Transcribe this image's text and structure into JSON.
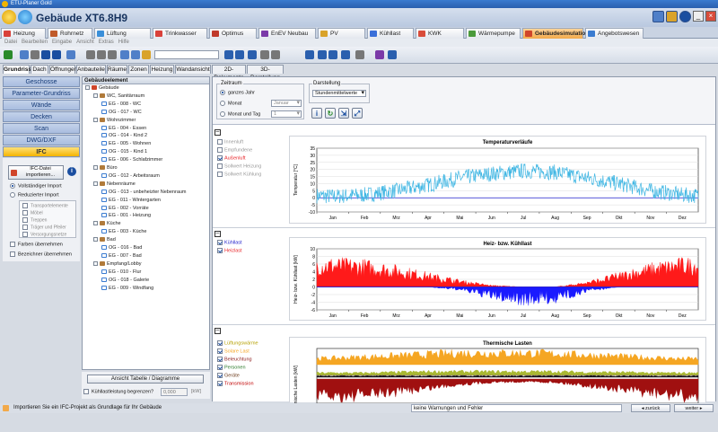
{
  "window": {
    "title": "ETU-Planer Gold"
  },
  "header": {
    "title": "Gebäude XT6.8H9"
  },
  "module_tabs": [
    {
      "label": "Heizung",
      "color": "#d9413a"
    },
    {
      "label": "Rohrnetz",
      "color": "#c05a2a"
    },
    {
      "label": "Lüftung",
      "color": "#3a8fd9"
    },
    {
      "label": "Trinkwasser",
      "color": "#d9413a"
    },
    {
      "label": "Optimus",
      "color": "#c0392b"
    },
    {
      "label": "EnEV Neubau",
      "color": "#7b3aa8"
    },
    {
      "label": "PV",
      "color": "#d9a32a"
    },
    {
      "label": "Kühllast",
      "color": "#3a6fd9"
    },
    {
      "label": "KWK",
      "color": "#d94c3a"
    },
    {
      "label": "Wärmepumpe",
      "color": "#4a9a3a"
    },
    {
      "label": "Gebäudesimulation",
      "color": "#d0452a"
    },
    {
      "label": "Angebotswesen",
      "color": "#3a7bd0"
    }
  ],
  "menu": [
    "Datei",
    "Bearbeiten",
    "Eingabe",
    "Ansicht",
    "Extras",
    "Hilfe"
  ],
  "sub_tabs": [
    "Grundriss",
    "Dach",
    "Öffnungen",
    "Anbauteile",
    "Räume",
    "Zonen",
    "Heizung",
    "Wandansicht",
    "2D-Dokumente",
    "3D-Darstellung"
  ],
  "nav": [
    "Geschosse",
    "Parameter-Grundriss",
    "Wände",
    "Decken",
    "Scan",
    "DWG/DXF",
    "IFC"
  ],
  "ifc": {
    "import_button": "IFC-Datei importieren...",
    "radio_full": "Vollständiger Import",
    "radio_reduced": "Reduzierter Import",
    "reduced_items": [
      "Transportelemente",
      "Möbel",
      "Treppen",
      "Träger und Pfeiler",
      "Versorgungsnetze"
    ],
    "check_colors": "Farben übernehmen",
    "check_names": "Bezeichner übernehmen"
  },
  "tree": {
    "header": "Gebäudeelement",
    "nodes": [
      {
        "label": "Gebäude",
        "level": 0,
        "type": "root"
      },
      {
        "label": "WC, Sanitärraum",
        "level": 1,
        "type": "folder"
      },
      {
        "label": "EG - 008 - WC",
        "level": 2,
        "type": "room"
      },
      {
        "label": "OG - 017 - WC",
        "level": 2,
        "type": "room"
      },
      {
        "label": "Wohnzimmer",
        "level": 1,
        "type": "folder"
      },
      {
        "label": "EG - 004 - Essen",
        "level": 2,
        "type": "room"
      },
      {
        "label": "OG - 014 - Kind 2",
        "level": 2,
        "type": "room"
      },
      {
        "label": "EG - 005 - Wohnen",
        "level": 2,
        "type": "room"
      },
      {
        "label": "OG - 015 - Kind 1",
        "level": 2,
        "type": "room"
      },
      {
        "label": "EG - 006 - Schlafzimmer",
        "level": 2,
        "type": "room"
      },
      {
        "label": "Büro",
        "level": 1,
        "type": "folder"
      },
      {
        "label": "OG - 012 - Arbeitsraum",
        "level": 2,
        "type": "room"
      },
      {
        "label": "Nebenräume",
        "level": 1,
        "type": "folder"
      },
      {
        "label": "OG - 013 - unbeheizter Nebenraum",
        "level": 2,
        "type": "room"
      },
      {
        "label": "EG - 011 - Wintergarten",
        "level": 2,
        "type": "room"
      },
      {
        "label": "EG - 002 - Vorräte",
        "level": 2,
        "type": "room"
      },
      {
        "label": "EG - 001 - Heizung",
        "level": 2,
        "type": "room"
      },
      {
        "label": "Küche",
        "level": 1,
        "type": "folder"
      },
      {
        "label": "EG - 003 - Küche",
        "level": 2,
        "type": "room"
      },
      {
        "label": "Bad",
        "level": 1,
        "type": "folder"
      },
      {
        "label": "OG - 016 - Bad",
        "level": 2,
        "type": "room"
      },
      {
        "label": "EG - 007 - Bad",
        "level": 2,
        "type": "room"
      },
      {
        "label": "Empfang/Lobby",
        "level": 1,
        "type": "folder"
      },
      {
        "label": "EG - 010 - Flur",
        "level": 2,
        "type": "room"
      },
      {
        "label": "OG - 018 - Galerie",
        "level": 2,
        "type": "room"
      },
      {
        "label": "EG - 009 - Windfang",
        "level": 2,
        "type": "room"
      }
    ]
  },
  "tree_footer": {
    "button": "Ansicht Tabelle / Diagramme",
    "check": "Kühllastleistung begrenzen?",
    "value": "0,000",
    "unit": "[kW]"
  },
  "settings": {
    "zeitraum_label": "Zeitraum",
    "radio_year": "ganzes Jahr",
    "radio_month": "Monat",
    "radio_monthday": "Monat und Tag",
    "month_value": "Januar",
    "day_value": "1",
    "darstellung_label": "Darstellung",
    "darstellung_value": "Stundenmittelwerte"
  },
  "chart_data": [
    {
      "type": "line",
      "title": "Temperaturverläufe",
      "ylabel": "Temperatur [°C]",
      "ylim": [
        -10,
        35
      ],
      "yticks": [
        -10,
        -5,
        0,
        5,
        10,
        15,
        20,
        25,
        30,
        35
      ],
      "categories": [
        "Jan",
        "Feb",
        "Mrz",
        "Apr",
        "Mai",
        "Jun",
        "Jul",
        "Aug",
        "Sep",
        "Okt",
        "Nov",
        "Dez"
      ],
      "legend": [
        {
          "label": "Innenluft",
          "checked": false,
          "color": "#888888"
        },
        {
          "label": "Empfundene",
          "checked": false,
          "color": "#888888"
        },
        {
          "label": "Außenluft",
          "checked": true,
          "color": "#e8262a"
        },
        {
          "label": "Sollwert Heizung",
          "checked": false,
          "color": "#e8262a"
        },
        {
          "label": "Sollwert Kühlung",
          "checked": false,
          "color": "#2222cc"
        }
      ],
      "series": [
        {
          "name": "Außenluft",
          "color": "#3fb6e3",
          "monthly_mean": [
            1,
            2,
            5,
            9,
            14,
            17,
            19,
            18,
            14,
            10,
            5,
            2
          ]
        }
      ],
      "reference_line": 0
    },
    {
      "type": "area",
      "title": "Heiz- bzw. Kühllast",
      "ylabel": "Heiz- bzw. Kühllast [kW]",
      "ylim": [
        -6,
        10
      ],
      "yticks": [
        -6,
        -4,
        -2,
        0,
        2,
        4,
        6,
        8,
        10
      ],
      "categories": [
        "Jan",
        "Feb",
        "Mrz",
        "Apr",
        "Mai",
        "Jun",
        "Jul",
        "Aug",
        "Sep",
        "Okt",
        "Nov",
        "Dez"
      ],
      "legend": [
        {
          "label": "Kühllast",
          "checked": true,
          "color": "#2222cc"
        },
        {
          "label": "Heizlast",
          "checked": true,
          "color": "#e8262a"
        }
      ],
      "series": [
        {
          "name": "Heizlast",
          "color": "#ff1a1a",
          "monthly_peak": [
            8,
            7.5,
            6,
            4,
            2,
            0.5,
            0,
            0,
            1.5,
            4,
            6.5,
            8
          ]
        },
        {
          "name": "Kühllast",
          "color": "#1a1aff",
          "monthly_peak": [
            0,
            0,
            0,
            0,
            -1,
            -3.5,
            -5,
            -4.5,
            -1.5,
            0,
            0,
            0
          ]
        }
      ]
    },
    {
      "type": "area",
      "title": "Thermische Lasten",
      "ylabel": "Thermische Lasten [kW]",
      "categories": [
        "Jan",
        "Feb",
        "Mrz",
        "Apr",
        "Mai",
        "Jun",
        "Jul",
        "Aug",
        "Sep",
        "Okt",
        "Nov",
        "Dez"
      ],
      "legend": [
        {
          "label": "Lüftungswärme",
          "checked": true,
          "color": "#b5a000"
        },
        {
          "label": "Solare Last",
          "checked": true,
          "color": "#f5a623"
        },
        {
          "label": "Beleuchtung",
          "checked": true,
          "color": "#8b1a1a"
        },
        {
          "label": "Personen",
          "checked": true,
          "color": "#2a7a2a"
        },
        {
          "label": "Geräte",
          "checked": true,
          "color": "#6b3a1a"
        },
        {
          "label": "Transmission",
          "checked": true,
          "color": "#c00000"
        }
      ],
      "series": [
        {
          "name": "Solare Last",
          "color": "#f5a623"
        },
        {
          "name": "Lüftungswärme",
          "color": "#a9b832"
        },
        {
          "name": "Personen",
          "color": "#111111"
        },
        {
          "name": "Transmission",
          "color": "#a01010"
        }
      ]
    }
  ],
  "status": {
    "message": "Importieren Sie ein IFC-Projekt als Grundlage für Ihr Gebäude",
    "warnings": "keine Warnungen und Fehler",
    "back": "zurück",
    "next": "weiter"
  }
}
